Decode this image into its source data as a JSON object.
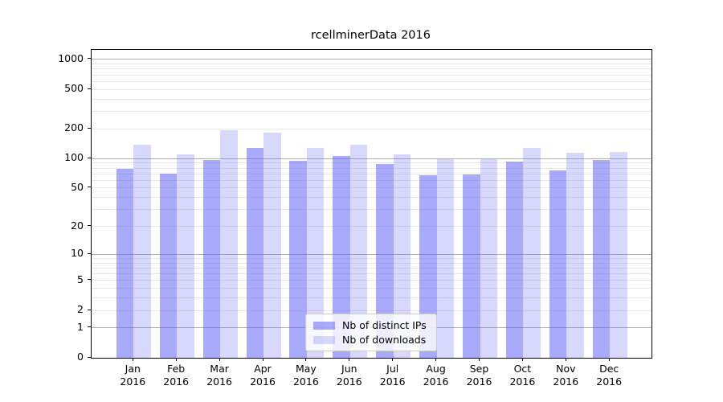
{
  "title": "rcellminerData 2016",
  "legend": {
    "items": [
      {
        "label": "Nb of distinct IPs"
      },
      {
        "label": "Nb of downloads"
      }
    ]
  },
  "chart_data": {
    "type": "bar",
    "title": "rcellminerData 2016",
    "categories": [
      "Jan",
      "Feb",
      "Mar",
      "Apr",
      "May",
      "Jun",
      "Jul",
      "Aug",
      "Sep",
      "Oct",
      "Nov",
      "Dec"
    ],
    "year": "2016",
    "series": [
      {
        "name": "Nb of distinct IPs",
        "color": "#6464f5",
        "alpha": 0.55,
        "values": [
          78,
          70,
          97,
          128,
          95,
          106,
          88,
          67,
          69,
          93,
          76,
          97
        ]
      },
      {
        "name": "Nb of downloads",
        "color": "#6464f5",
        "alpha": 0.25,
        "values": [
          139,
          110,
          195,
          182,
          128,
          139,
          111,
          99,
          99,
          129,
          114,
          117
        ]
      }
    ],
    "yscale": "log1p",
    "ylim": [
      0,
      1200
    ],
    "yticks": [
      1000,
      500,
      200,
      100,
      50,
      20,
      10,
      5,
      2,
      1,
      0
    ],
    "grid": {
      "major": [
        1,
        10,
        100,
        1000
      ],
      "minor": [
        2,
        3,
        4,
        5,
        6,
        7,
        8,
        9,
        20,
        30,
        40,
        50,
        60,
        70,
        80,
        90,
        200,
        300,
        400,
        500,
        600,
        700,
        800,
        900
      ]
    },
    "legend_position": "lower-center-inside",
    "colors": {
      "axis": "#000000",
      "grid_major": "#b0b0b0",
      "grid_minor": "#e7e7e7",
      "legend_border": "#cccccc",
      "background": "#ffffff"
    }
  }
}
